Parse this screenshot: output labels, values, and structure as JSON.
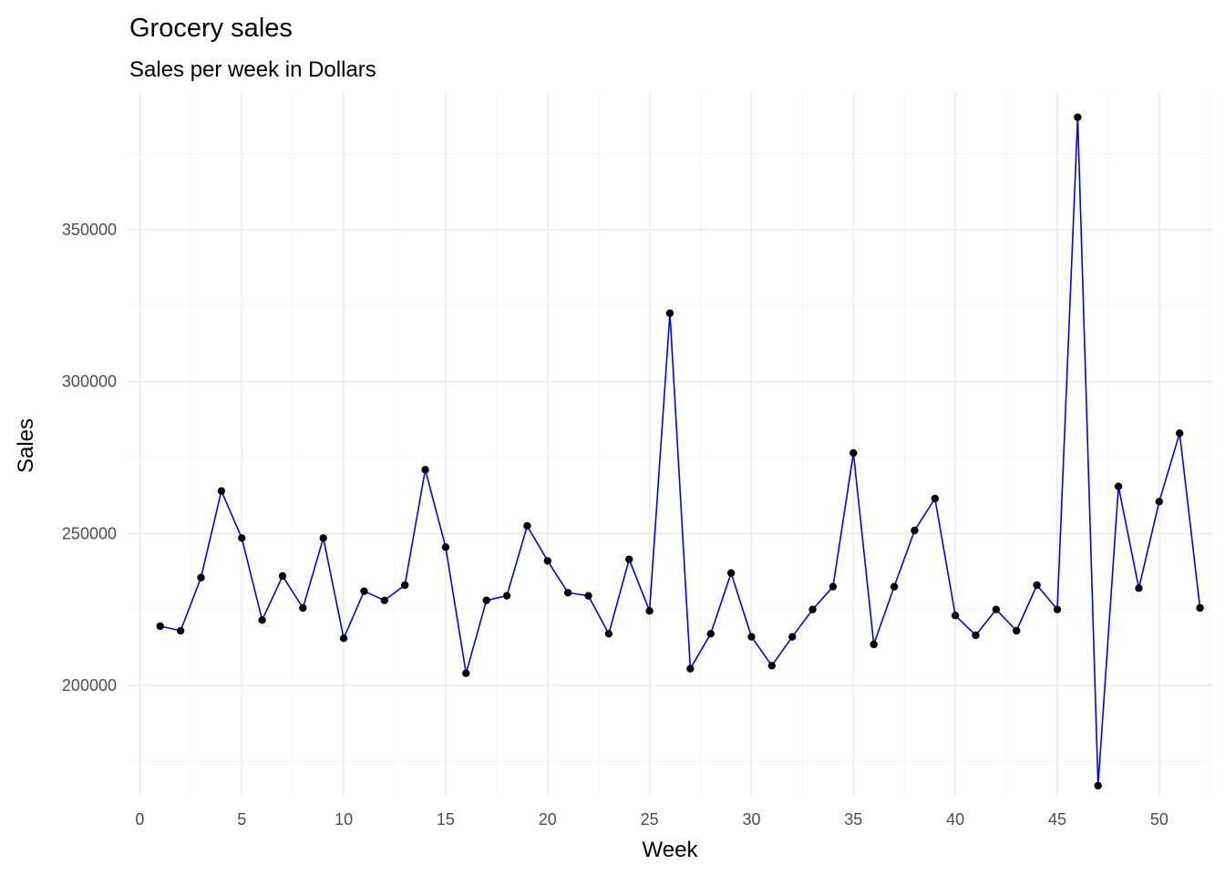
{
  "chart_data": {
    "type": "line",
    "title": "Grocery sales",
    "subtitle": "Sales per week in Dollars",
    "xlabel": "Week",
    "ylabel": "Sales",
    "xlim": [
      -0.6,
      52.6
    ],
    "ylim": [
      164000,
      395000
    ],
    "x_ticks": [
      0,
      5,
      10,
      15,
      20,
      25,
      30,
      35,
      40,
      45,
      50
    ],
    "y_ticks": [
      200000,
      250000,
      300000,
      350000
    ],
    "grid": true,
    "legend": "none",
    "line_color": "#0000ff",
    "point_color": "#000000",
    "series": [
      {
        "x": [
          1,
          2,
          3,
          4,
          5,
          6,
          7,
          8,
          9,
          10,
          11,
          12,
          13,
          14,
          15,
          16,
          17,
          18,
          19,
          20,
          21,
          22,
          23,
          24,
          25,
          26,
          27,
          28,
          29,
          30,
          31,
          32,
          33,
          34,
          35,
          36,
          37,
          38,
          39,
          40,
          41,
          42,
          43,
          44,
          45,
          46,
          47,
          48,
          49,
          50,
          51,
          52
        ],
        "values": [
          219500,
          218000,
          235500,
          264000,
          248500,
          221500,
          236000,
          225500,
          248500,
          215500,
          231000,
          228000,
          233000,
          271000,
          245500,
          204000,
          228000,
          229500,
          252500,
          241000,
          230500,
          229500,
          217000,
          241500,
          224500,
          322500,
          205500,
          217000,
          237000,
          216000,
          206500,
          216000,
          225000,
          232500,
          276500,
          213500,
          232500,
          251000,
          261500,
          223000,
          216500,
          225000,
          218000,
          233000,
          225000,
          387000,
          167000,
          265500,
          232000,
          260500,
          283000,
          225500
        ]
      }
    ]
  }
}
